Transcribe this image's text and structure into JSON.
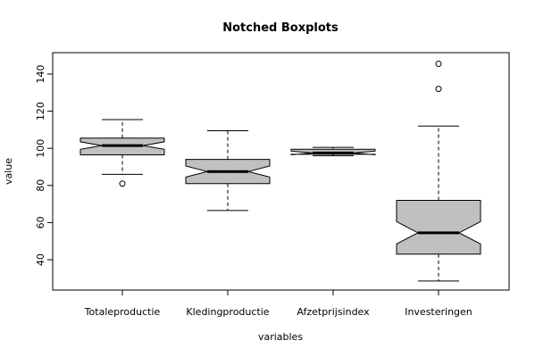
{
  "chart_data": {
    "type": "boxplot",
    "notched": true,
    "title": "Notched Boxplots",
    "xlabel": "variables",
    "ylabel": "value",
    "ylim": [
      25,
      150
    ],
    "yticks": [
      40,
      60,
      80,
      100,
      120,
      140
    ],
    "categories": [
      "Totaleproductie",
      "Kledingproductie",
      "Afzetprijsindex",
      "Investeringen"
    ],
    "boxes": [
      {
        "name": "Totaleproductie",
        "whisker_low": 86,
        "q1": 96.5,
        "median": 101.5,
        "q3": 105.5,
        "whisker_high": 115.5,
        "notch_low": 99.5,
        "notch_high": 103.5,
        "outliers": [
          81
        ]
      },
      {
        "name": "Kledingproductie",
        "whisker_low": 66.5,
        "q1": 81,
        "median": 87.5,
        "q3": 94,
        "whisker_high": 109.5,
        "notch_low": 84.5,
        "notch_high": 90.5,
        "outliers": []
      },
      {
        "name": "Afzetprijsindex",
        "whisker_low": 96,
        "q1": 96.8,
        "median": 97.5,
        "q3": 99.5,
        "whisker_high": 100.5,
        "notch_low": 96.5,
        "notch_high": 98.5,
        "outliers": []
      },
      {
        "name": "Investeringen",
        "whisker_low": 28.5,
        "q1": 43,
        "median": 54.5,
        "q3": 72,
        "whisker_high": 112,
        "notch_low": 48.5,
        "notch_high": 60.5,
        "outliers": [
          132,
          145.5
        ]
      }
    ],
    "box_fill": "#c0c0c0"
  }
}
